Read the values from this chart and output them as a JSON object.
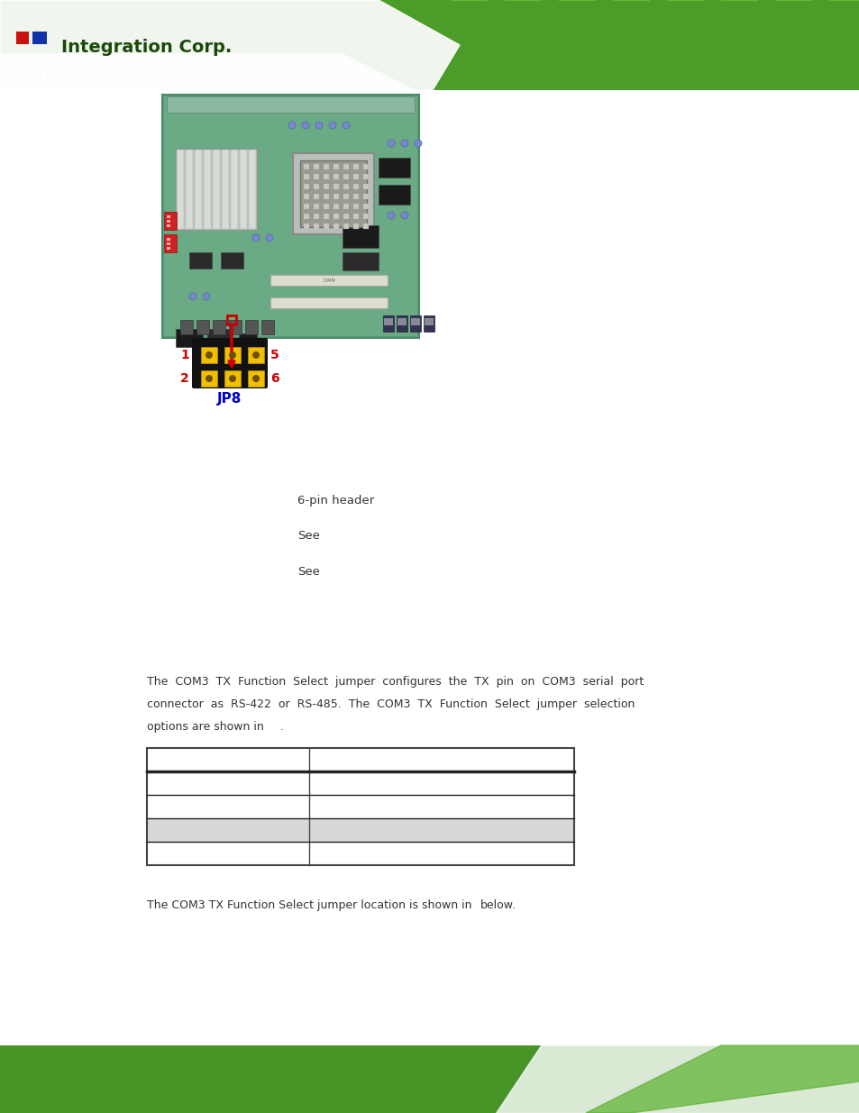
{
  "page_bg": "#ffffff",
  "fig_width": 9.54,
  "fig_height": 12.35,
  "dpi": 100,
  "body_text_1": "The  COM3  TX  Function  Select  jumper  configures  the  TX  pin  on  COM3  serial  port",
  "body_text_2": "connector  as  RS-422  or  RS-485.  The  COM3  TX  Function  Select  jumper  selection",
  "body_text_3": "options are shown in",
  "body_text_3b": ".",
  "body_text_4": "The COM3 TX Function Select jumper location is shown in",
  "body_text_4b": "below.",
  "spec_text_1": "6-pin header",
  "spec_text_2": "See",
  "spec_text_3": "See",
  "jp8_label": "JP8",
  "pin_label_1": "1",
  "pin_label_2": "2",
  "pin_label_5": "5",
  "pin_label_6": "6",
  "jumper_yellow": "#f0c000",
  "jumper_body": "#1a1a1a",
  "red_color": "#cc0000",
  "jp8_text_color": "#0000cc",
  "body_font_size": 9.0,
  "spec_font_size": 9.5,
  "table_shaded_bg": "#d8d8d8",
  "header_green_dark": "#2d7a1a",
  "header_green_mid": "#5ab832",
  "header_green_light": "#a0d060",
  "footer_green": "#3a8a20"
}
